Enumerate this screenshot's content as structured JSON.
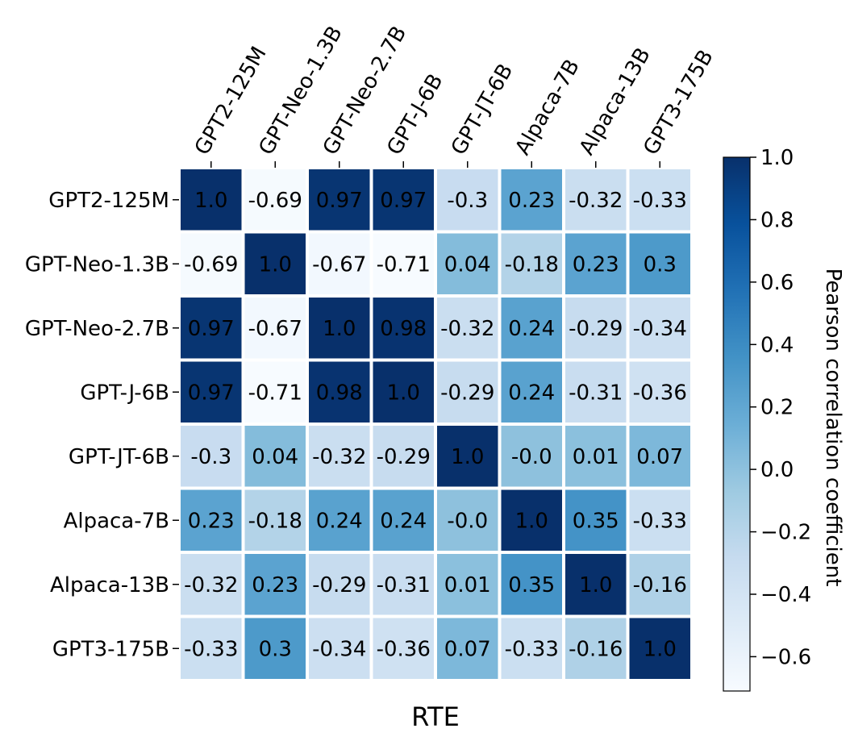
{
  "chart_data": {
    "type": "heatmap",
    "xlabel": "RTE",
    "row_labels": [
      "GPT2-125M",
      "GPT-Neo-1.3B",
      "GPT-Neo-2.7B",
      "GPT-J-6B",
      "GPT-JT-6B",
      "Alpaca-7B",
      "Alpaca-13B",
      "GPT3-175B"
    ],
    "col_labels": [
      "GPT2-125M",
      "GPT-Neo-1.3B",
      "GPT-Neo-2.7B",
      "GPT-J-6B",
      "GPT-JT-6B",
      "Alpaca-7B",
      "Alpaca-13B",
      "GPT3-175B"
    ],
    "values": [
      [
        1.0,
        -0.69,
        0.97,
        0.97,
        -0.3,
        0.23,
        -0.32,
        -0.33
      ],
      [
        -0.69,
        1.0,
        -0.67,
        -0.71,
        0.04,
        -0.18,
        0.23,
        0.3
      ],
      [
        0.97,
        -0.67,
        1.0,
        0.98,
        -0.32,
        0.24,
        -0.29,
        -0.34
      ],
      [
        0.97,
        -0.71,
        0.98,
        1.0,
        -0.29,
        0.24,
        -0.31,
        -0.36
      ],
      [
        -0.3,
        0.04,
        -0.32,
        -0.29,
        1.0,
        -0.0,
        0.01,
        0.07
      ],
      [
        0.23,
        -0.18,
        0.24,
        0.24,
        -0.0,
        1.0,
        0.35,
        -0.33
      ],
      [
        -0.32,
        0.23,
        -0.29,
        -0.31,
        0.01,
        0.35,
        1.0,
        -0.16
      ],
      [
        -0.33,
        0.3,
        -0.34,
        -0.36,
        0.07,
        -0.33,
        -0.16,
        1.0
      ]
    ],
    "value_labels": [
      [
        "1.0",
        "-0.69",
        "0.97",
        "0.97",
        "-0.3",
        "0.23",
        "-0.32",
        "-0.33"
      ],
      [
        "-0.69",
        "1.0",
        "-0.67",
        "-0.71",
        "0.04",
        "-0.18",
        "0.23",
        "0.3"
      ],
      [
        "0.97",
        "-0.67",
        "1.0",
        "0.98",
        "-0.32",
        "0.24",
        "-0.29",
        "-0.34"
      ],
      [
        "0.97",
        "-0.71",
        "0.98",
        "1.0",
        "-0.29",
        "0.24",
        "-0.31",
        "-0.36"
      ],
      [
        "-0.3",
        "0.04",
        "-0.32",
        "-0.29",
        "1.0",
        "-0.0",
        "0.01",
        "0.07"
      ],
      [
        "0.23",
        "-0.18",
        "0.24",
        "0.24",
        "-0.0",
        "1.0",
        "0.35",
        "-0.33"
      ],
      [
        "-0.32",
        "0.23",
        "-0.29",
        "-0.31",
        "0.01",
        "0.35",
        "1.0",
        "-0.16"
      ],
      [
        "-0.33",
        "0.3",
        "-0.34",
        "-0.36",
        "0.07",
        "-0.33",
        "-0.16",
        "1.0"
      ]
    ],
    "colormap": "Blues",
    "vmin": -0.71,
    "vmax": 1.0,
    "colorbar": {
      "label": "Pearson correlation coefficient",
      "ticks": [
        1.0,
        0.8,
        0.6,
        0.4,
        0.2,
        0.0,
        -0.2,
        -0.4,
        -0.6
      ],
      "tick_labels": [
        "1.0",
        "0.8",
        "0.6",
        "0.4",
        "0.2",
        "0.0",
        "−0.2",
        "−0.4",
        "−0.6"
      ],
      "placement": "right"
    },
    "grid_lines": "white"
  }
}
